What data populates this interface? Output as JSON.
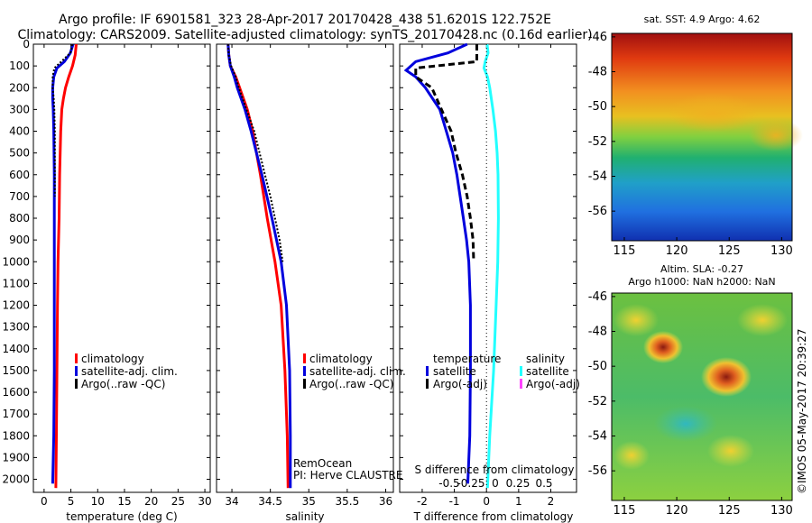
{
  "header": {
    "title_line1": "Argo profile: IF 6901581_323 28-Apr-2017 20170428_438 51.6201S 122.752E",
    "title_line2": "Climatology: CARS2009. Satellite-adjusted climatology: synTS_20170428.nc (0.16d earlier)"
  },
  "map_top": {
    "title": "sat. SST: 4.9 Argo: 4.62"
  },
  "map_bottom": {
    "title_line1": "Altim. SLA: -0.27",
    "title_line2": "Argo h1000: NaN h2000: NaN"
  },
  "credit": {
    "program": "RemOcean",
    "pi": "PI: Herve CLAUSTRE",
    "stamp": "©IMOS 05-May-2017 20:39:27"
  },
  "colors": {
    "climatology": "#ff0000",
    "satellite": "#0000dd",
    "argo": "#000000",
    "sal_satellite": "#22ffff",
    "sal_argo": "#ff44ff"
  },
  "legends": {
    "climatology": "climatology",
    "satellite_adj": "satellite-adj. clim.",
    "argo_raw": "Argo(..raw -QC)",
    "temperature": "temperature",
    "salinity": "salinity",
    "satellite": "satellite",
    "argo_adj": "Argo(-adj)"
  },
  "chart_data": [
    {
      "type": "line",
      "xlabel": "temperature (deg C)",
      "ylabel": "",
      "xlim": [
        -2,
        31
      ],
      "ylim": [
        2060,
        0
      ],
      "x_ticks": [
        "0",
        "5",
        "10",
        "15",
        "20",
        "25",
        "30"
      ],
      "y_ticks": [
        "0",
        "100",
        "200",
        "300",
        "400",
        "500",
        "600",
        "700",
        "800",
        "900",
        "1000",
        "1100",
        "1200",
        "1300",
        "1400",
        "1500",
        "1600",
        "1700",
        "1800",
        "1900",
        "2000"
      ],
      "series": [
        {
          "name": "climatology",
          "color": "#ff0000",
          "depth": [
            0,
            50,
            100,
            150,
            200,
            250,
            300,
            400,
            500,
            600,
            800,
            1000,
            1200,
            1500,
            1800,
            2040
          ],
          "values": [
            6.0,
            5.8,
            5.3,
            4.6,
            4.0,
            3.6,
            3.3,
            3.1,
            3.0,
            2.9,
            2.8,
            2.6,
            2.5,
            2.4,
            2.3,
            2.2
          ]
        },
        {
          "name": "satellite-adj. clim.",
          "color": "#0000dd",
          "depth": [
            0,
            40,
            80,
            110,
            150,
            200,
            250,
            300,
            400,
            600,
            800,
            1000,
            1200,
            1500,
            1800,
            2020
          ],
          "values": [
            5.4,
            4.9,
            3.8,
            2.4,
            1.8,
            1.6,
            1.6,
            1.7,
            1.8,
            1.9,
            1.9,
            1.9,
            1.9,
            1.9,
            1.8,
            1.6
          ]
        },
        {
          "name": "Argo(..raw -QC)",
          "color": "#000000",
          "depth": [
            0,
            40,
            80,
            110,
            150,
            200,
            250,
            300,
            400,
            500,
            600,
            700
          ],
          "values": [
            5.3,
            4.9,
            3.2,
            1.9,
            1.6,
            1.6,
            1.8,
            1.9,
            2.0,
            2.0,
            2.0,
            2.0
          ]
        }
      ]
    },
    {
      "type": "line",
      "xlabel": "salinity",
      "ylabel": "",
      "xlim": [
        33.8,
        36.1
      ],
      "ylim": [
        2060,
        0
      ],
      "x_ticks": [
        "34",
        "34.5",
        "35",
        "35.5",
        "36"
      ],
      "series": [
        {
          "name": "climatology",
          "color": "#ff0000",
          "depth": [
            0,
            50,
            100,
            150,
            200,
            300,
            400,
            500,
            600,
            800,
            1000,
            1200,
            1500,
            1800,
            2040
          ],
          "values": [
            33.95,
            33.96,
            33.98,
            34.05,
            34.1,
            34.2,
            34.27,
            34.32,
            34.37,
            34.46,
            34.56,
            34.64,
            34.69,
            34.72,
            34.73
          ]
        },
        {
          "name": "satellite-adj. clim.",
          "color": "#0000dd",
          "depth": [
            0,
            50,
            100,
            150,
            200,
            300,
            400,
            500,
            600,
            800,
            1000,
            1200,
            1500,
            1800,
            2040
          ],
          "values": [
            33.95,
            33.96,
            33.98,
            34.03,
            34.07,
            34.17,
            34.25,
            34.32,
            34.39,
            34.52,
            34.64,
            34.71,
            34.75,
            34.76,
            34.76
          ]
        },
        {
          "name": "Argo(..raw -QC)",
          "color": "#000000",
          "depth": [
            0,
            50,
            100,
            150,
            200,
            300,
            400,
            500,
            600,
            700,
            800,
            900,
            1000
          ],
          "values": [
            33.95,
            33.96,
            33.99,
            34.05,
            34.09,
            34.19,
            34.29,
            34.36,
            34.43,
            34.5,
            34.56,
            34.62,
            34.66
          ]
        }
      ]
    },
    {
      "type": "line",
      "xlabel": "T difference from climatology",
      "x2label": "S difference from climatology",
      "ylabel": "",
      "xlim": [
        -2.7,
        2.8
      ],
      "ylim": [
        2060,
        0
      ],
      "x_ticks": [
        "-2",
        "-1",
        "0",
        "1",
        "2"
      ],
      "x2_ticks": [
        "-0.5",
        "-0.25",
        "0",
        "0.25",
        "0.5"
      ],
      "series": [
        {
          "name": "temperature satellite",
          "color": "#0000dd",
          "depth": [
            0,
            40,
            80,
            120,
            150,
            200,
            300,
            400,
            500,
            600,
            700,
            800,
            900,
            1000,
            1200,
            1500,
            1800,
            2020
          ],
          "values": [
            -0.6,
            -1.2,
            -2.2,
            -2.5,
            -2.2,
            -1.9,
            -1.45,
            -1.25,
            -1.05,
            -0.92,
            -0.82,
            -0.72,
            -0.62,
            -0.55,
            -0.5,
            -0.5,
            -0.52,
            -0.58
          ]
        },
        {
          "name": "temperature Argo(-adj)",
          "color": "#000000",
          "depth": [
            0,
            40,
            80,
            110,
            150,
            200,
            300,
            400,
            500,
            600,
            700,
            800,
            900,
            1000
          ],
          "values": [
            -0.3,
            -0.3,
            -0.3,
            -2.2,
            -2.2,
            -1.7,
            -1.4,
            -1.1,
            -0.95,
            -0.75,
            -0.6,
            -0.5,
            -0.42,
            -0.4
          ]
        },
        {
          "name": "salinity satellite",
          "color": "#22ffff",
          "depth": [
            0,
            40,
            80,
            110,
            150,
            200,
            300,
            400,
            500,
            600,
            800,
            1000,
            1200,
            1500,
            1800,
            2040
          ],
          "values": [
            0.02,
            0.05,
            -0.04,
            -0.08,
            0.03,
            0.1,
            0.2,
            0.28,
            0.33,
            0.36,
            0.37,
            0.35,
            0.3,
            0.22,
            0.1,
            0.03
          ]
        }
      ]
    }
  ]
}
